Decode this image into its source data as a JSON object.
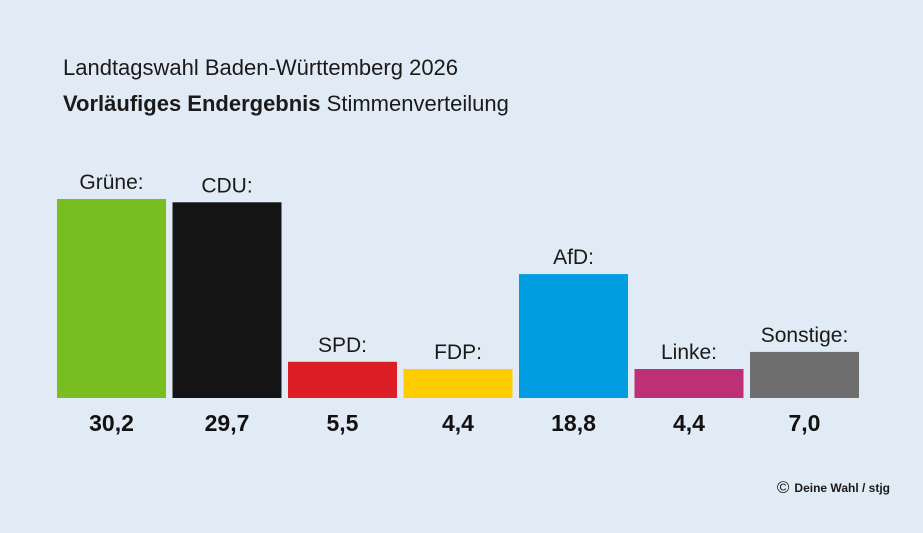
{
  "header": {
    "title": "Landtagswahl Baden-Württemberg 2026",
    "subtitle_bold": "Vorläufiges Endergebnis",
    "subtitle_rest": "Stimmenverteilung"
  },
  "credit": {
    "icon": "copyright-icon",
    "text": "Deine Wahl / stjg"
  },
  "chart_data": {
    "type": "bar",
    "categories": [
      "Grüne:",
      "CDU:",
      "SPD:",
      "FDP:",
      "AfD:",
      "Linke:",
      "Sonstige:"
    ],
    "values": [
      30.2,
      29.7,
      5.5,
      4.4,
      18.8,
      4.4,
      7.0
    ],
    "value_labels": [
      "30,2",
      "29,7",
      "5,5",
      "4,4",
      "18,8",
      "4,4",
      "7,0"
    ],
    "colors": [
      "#78be20",
      "#141414",
      "#dc1f26",
      "#ffcc00",
      "#009ee0",
      "#be3075",
      "#6e6e6e"
    ],
    "title": "Landtagswahl Baden-Württemberg 2026",
    "xlabel": "",
    "ylabel": "",
    "ylim": [
      0,
      30.2
    ],
    "grid": false
  }
}
